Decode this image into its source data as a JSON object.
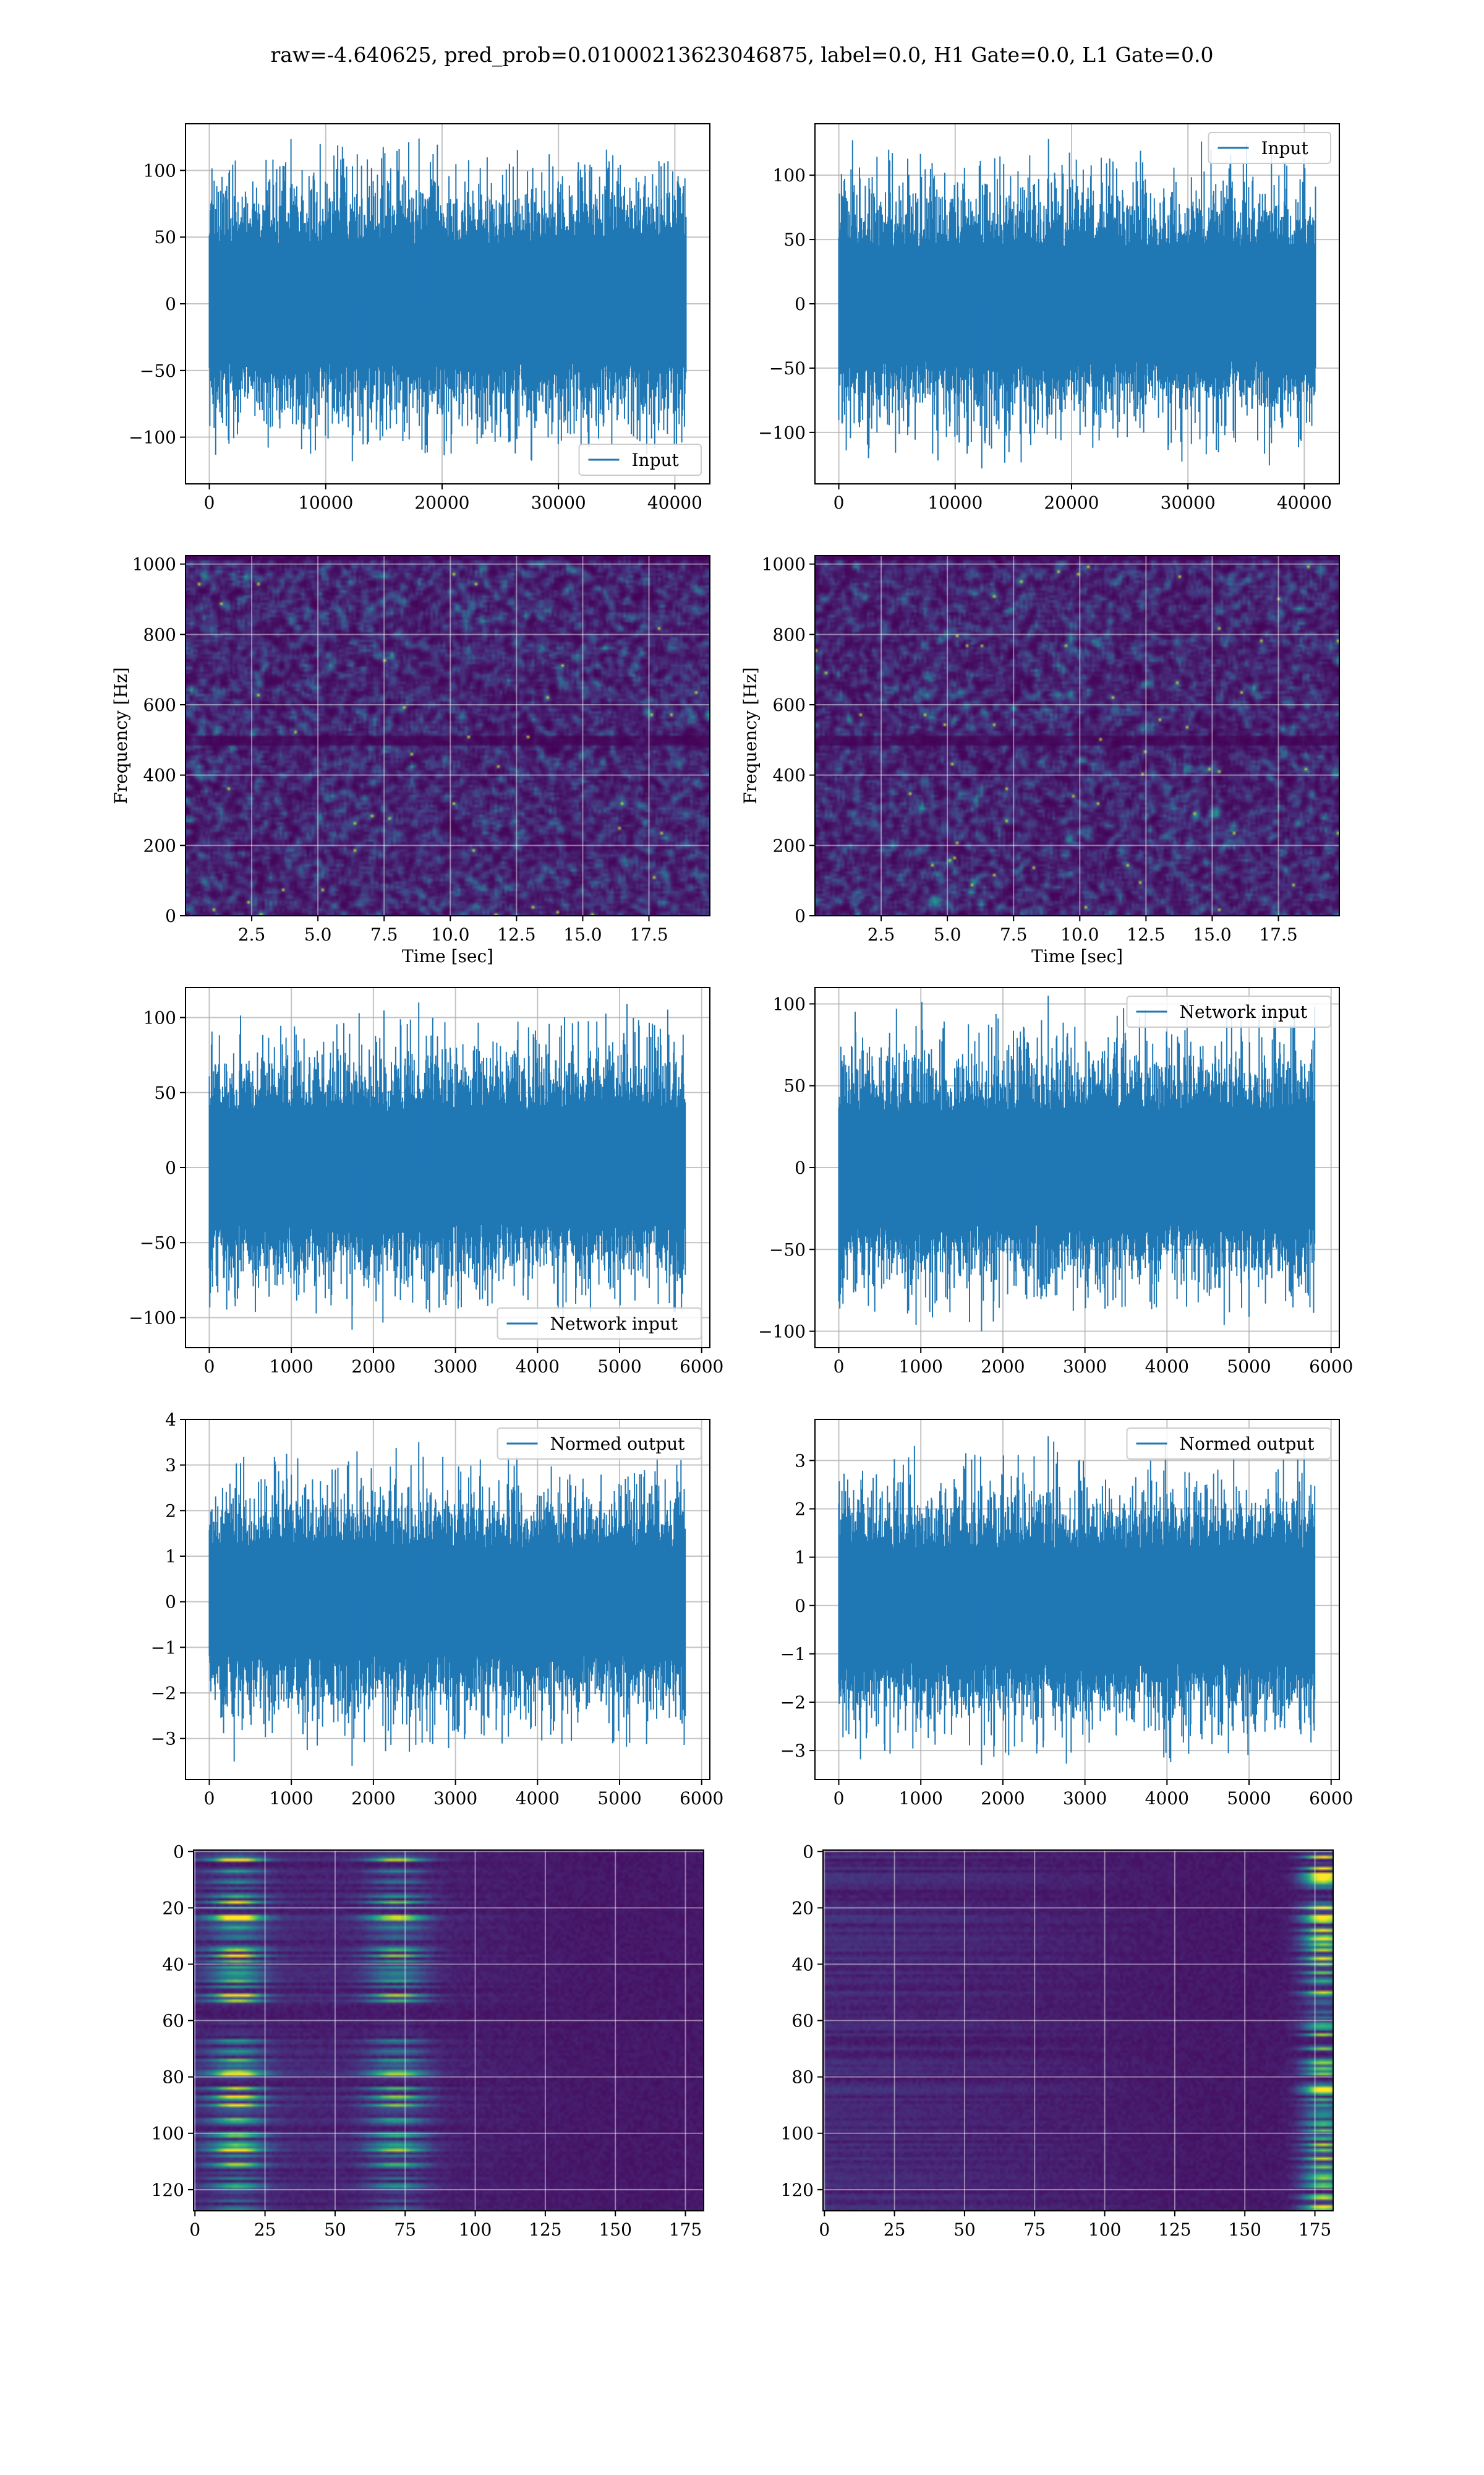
{
  "figure": {
    "suptitle": "raw=-4.640625, pred_prob=0.01000213623046875, label=0.0, H1 Gate=0.0, L1 Gate=0.0",
    "colors": {
      "line": "#1f77b4",
      "grid": "#b0b0b0",
      "viridis_low": "#440154",
      "viridis_mid": "#21918c",
      "viridis_high": "#fde725"
    }
  },
  "chart_data": [
    {
      "id": "r0c0",
      "type": "line",
      "render": "noise",
      "title": "",
      "xlabel": "",
      "ylabel": "",
      "xlim": [
        -2048,
        43008
      ],
      "ylim": [
        -135,
        135
      ],
      "xticks": [
        0,
        10000,
        20000,
        30000,
        40000
      ],
      "yticks": [
        -100,
        -50,
        0,
        50,
        100
      ],
      "grid": true,
      "legend": "lower right",
      "series": [
        {
          "name": "Input",
          "x_range": [
            0,
            40960
          ],
          "body_amplitude": [
            -45,
            45
          ],
          "peak_range": [
            -118,
            124
          ]
        }
      ]
    },
    {
      "id": "r0c1",
      "type": "line",
      "render": "noise",
      "title": "",
      "xlabel": "",
      "ylabel": "",
      "xlim": [
        -2048,
        43008
      ],
      "ylim": [
        -140,
        140
      ],
      "xticks": [
        0,
        10000,
        20000,
        30000,
        40000
      ],
      "yticks": [
        -100,
        -50,
        0,
        50,
        100
      ],
      "grid": true,
      "legend": "upper right",
      "series": [
        {
          "name": "Input",
          "x_range": [
            0,
            40960
          ],
          "body_amplitude": [
            -45,
            45
          ],
          "peak_range": [
            -128,
            128
          ]
        }
      ]
    },
    {
      "id": "r1c0",
      "type": "heatmap",
      "render": "specgram",
      "title": "",
      "xlabel": "Time [sec]",
      "ylabel": "Frequency [Hz]",
      "xlim": [
        0,
        19.8
      ],
      "ylim": [
        0,
        1024
      ],
      "xticks": [
        2.5,
        5.0,
        7.5,
        10.0,
        12.5,
        15.0,
        17.5
      ],
      "yticks": [
        0,
        200,
        400,
        600,
        800,
        1000
      ],
      "grid": true,
      "colormap": "viridis"
    },
    {
      "id": "r1c1",
      "type": "heatmap",
      "render": "specgram",
      "title": "",
      "xlabel": "Time [sec]",
      "ylabel": "Frequency [Hz]",
      "xlim": [
        0,
        19.8
      ],
      "ylim": [
        0,
        1024
      ],
      "xticks": [
        2.5,
        5.0,
        7.5,
        10.0,
        12.5,
        15.0,
        17.5
      ],
      "yticks": [
        0,
        200,
        400,
        600,
        800,
        1000
      ],
      "grid": true,
      "colormap": "viridis"
    },
    {
      "id": "r2c0",
      "type": "line",
      "render": "noise",
      "title": "",
      "xlabel": "",
      "ylabel": "",
      "xlim": [
        -290,
        6100
      ],
      "ylim": [
        -120,
        120
      ],
      "xticks": [
        0,
        1000,
        2000,
        3000,
        4000,
        5000,
        6000
      ],
      "yticks": [
        -100,
        -50,
        0,
        50,
        100
      ],
      "grid": true,
      "legend": "lower right",
      "series": [
        {
          "name": "Network input",
          "x_range": [
            0,
            5800
          ],
          "body_amplitude": [
            -38,
            38
          ],
          "peak_range": [
            -108,
            110
          ]
        }
      ]
    },
    {
      "id": "r2c1",
      "type": "line",
      "render": "noise",
      "title": "",
      "xlabel": "",
      "ylabel": "",
      "xlim": [
        -290,
        6100
      ],
      "ylim": [
        -110,
        110
      ],
      "xticks": [
        0,
        1000,
        2000,
        3000,
        4000,
        5000,
        6000
      ],
      "yticks": [
        -100,
        -50,
        0,
        50,
        100
      ],
      "grid": true,
      "legend": "upper right",
      "series": [
        {
          "name": "Network input",
          "x_range": [
            0,
            5800
          ],
          "body_amplitude": [
            -35,
            35
          ],
          "peak_range": [
            -100,
            105
          ]
        }
      ]
    },
    {
      "id": "r3c0",
      "type": "line",
      "render": "noise",
      "title": "",
      "xlabel": "",
      "ylabel": "",
      "xlim": [
        -290,
        6100
      ],
      "ylim": [
        -3.9,
        4.0
      ],
      "xticks": [
        0,
        1000,
        2000,
        3000,
        4000,
        5000,
        6000
      ],
      "yticks": [
        -3,
        -2,
        -1,
        0,
        1,
        2,
        3,
        4
      ],
      "grid": true,
      "legend": "upper right",
      "series": [
        {
          "name": "Normed output",
          "x_range": [
            0,
            5800
          ],
          "body_amplitude": [
            -1.2,
            1.2
          ],
          "peak_range": [
            -3.6,
            3.5
          ]
        }
      ]
    },
    {
      "id": "r3c1",
      "type": "line",
      "render": "noise",
      "title": "",
      "xlabel": "",
      "ylabel": "",
      "xlim": [
        -290,
        6100
      ],
      "ylim": [
        -3.6,
        3.85
      ],
      "xticks": [
        0,
        1000,
        2000,
        3000,
        4000,
        5000,
        6000
      ],
      "yticks": [
        -3,
        -2,
        -1,
        0,
        1,
        2,
        3
      ],
      "grid": true,
      "legend": "upper right",
      "series": [
        {
          "name": "Normed output",
          "x_range": [
            0,
            5800
          ],
          "body_amplitude": [
            -1.2,
            1.2
          ],
          "peak_range": [
            -3.3,
            3.5
          ]
        }
      ]
    },
    {
      "id": "r4c0",
      "type": "heatmap",
      "render": "features_left",
      "title": "",
      "xlabel": "",
      "ylabel": "",
      "xlim": [
        -0.5,
        181.5
      ],
      "ylim": [
        127.5,
        -0.5
      ],
      "xticks": [
        0,
        25,
        50,
        75,
        100,
        125,
        150,
        175
      ],
      "yticks": [
        0,
        20,
        40,
        60,
        80,
        100,
        120
      ],
      "grid": true,
      "colormap": "viridis"
    },
    {
      "id": "r4c1",
      "type": "heatmap",
      "render": "features_right",
      "title": "",
      "xlabel": "",
      "ylabel": "",
      "xlim": [
        -0.5,
        181.5
      ],
      "ylim": [
        127.5,
        -0.5
      ],
      "xticks": [
        0,
        25,
        50,
        75,
        100,
        125,
        150,
        175
      ],
      "yticks": [
        0,
        20,
        40,
        60,
        80,
        100,
        120
      ],
      "grid": true,
      "colormap": "viridis"
    }
  ]
}
